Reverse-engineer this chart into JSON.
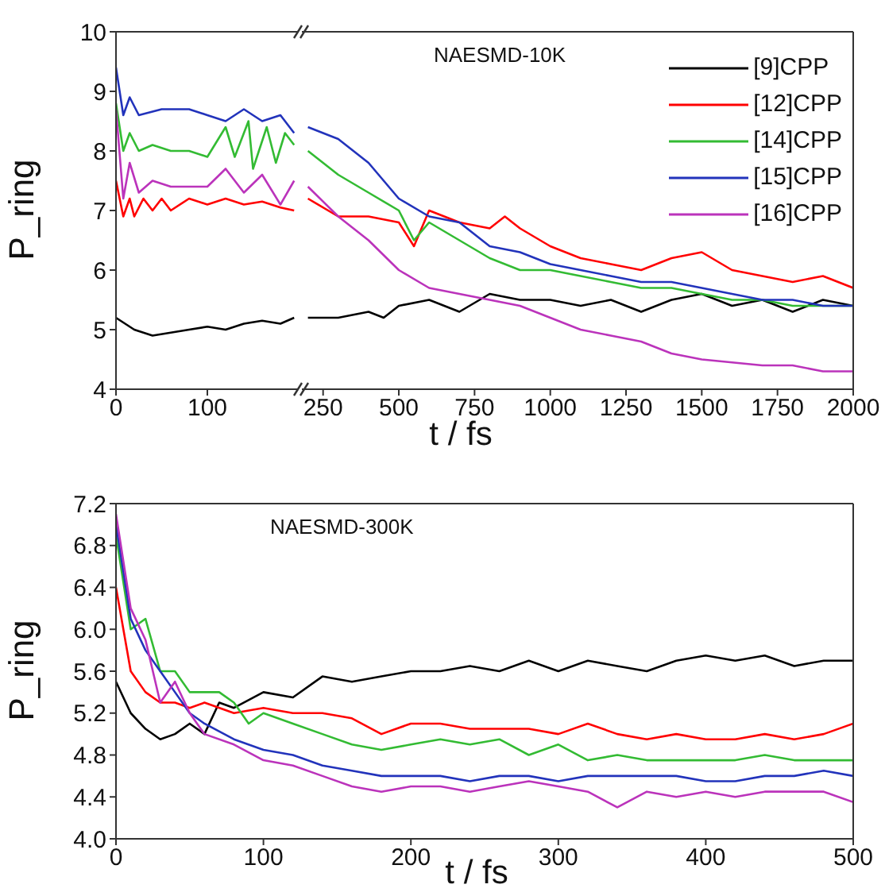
{
  "chart_data": [
    {
      "type": "line",
      "ylabel": "P_ring",
      "xlim": [
        0,
        200
      ],
      "xticks": [
        0,
        100
      ],
      "ylim": [
        4,
        10
      ],
      "yticks": [
        4,
        5,
        6,
        7,
        8,
        9,
        10
      ],
      "legend": false,
      "series": [
        {
          "color": "#000000",
          "x": [
            0,
            10,
            20,
            40,
            60,
            80,
            100,
            120,
            140,
            160,
            180,
            195
          ],
          "values": [
            5.2,
            5.1,
            5.0,
            4.9,
            4.95,
            5.0,
            5.05,
            5.0,
            5.1,
            5.15,
            5.1,
            5.2
          ]
        },
        {
          "color": "#ff0000",
          "x": [
            0,
            8,
            15,
            20,
            30,
            40,
            50,
            60,
            80,
            100,
            120,
            140,
            160,
            180,
            195
          ],
          "values": [
            7.5,
            6.9,
            7.2,
            6.9,
            7.2,
            7.0,
            7.2,
            7.0,
            7.2,
            7.1,
            7.2,
            7.1,
            7.15,
            7.05,
            7.0
          ]
        },
        {
          "color": "#33bb33",
          "x": [
            0,
            8,
            15,
            25,
            40,
            60,
            80,
            100,
            120,
            130,
            145,
            150,
            165,
            175,
            185,
            195
          ],
          "values": [
            8.8,
            8.0,
            8.3,
            8.0,
            8.1,
            8.0,
            8.0,
            7.9,
            8.4,
            7.9,
            8.5,
            7.7,
            8.4,
            7.8,
            8.3,
            8.1
          ]
        },
        {
          "color": "#2233bb",
          "x": [
            0,
            8,
            15,
            25,
            50,
            80,
            100,
            120,
            140,
            160,
            180,
            195
          ],
          "values": [
            9.4,
            8.6,
            8.9,
            8.6,
            8.7,
            8.7,
            8.6,
            8.5,
            8.7,
            8.5,
            8.6,
            8.3
          ]
        },
        {
          "color": "#bb33bb",
          "x": [
            0,
            8,
            15,
            25,
            40,
            60,
            80,
            100,
            120,
            140,
            160,
            180,
            195
          ],
          "values": [
            8.7,
            7.2,
            7.8,
            7.3,
            7.5,
            7.4,
            7.4,
            7.4,
            7.7,
            7.3,
            7.6,
            7.1,
            7.5
          ]
        }
      ]
    },
    {
      "type": "line",
      "title": "NAESMD-10K",
      "xlabel": "t / fs",
      "xlim": [
        180,
        2000
      ],
      "xticks": [
        250,
        500,
        750,
        1000,
        1250,
        1500,
        1750,
        2000
      ],
      "ylim": [
        4,
        10
      ],
      "yticks": [
        4,
        5,
        6,
        7,
        8,
        9,
        10
      ],
      "tick_labels": "x",
      "legend": "top right",
      "series": [
        {
          "name": "[9]CPP",
          "color": "#000000",
          "x": [
            200,
            300,
            400,
            450,
            500,
            600,
            700,
            800,
            900,
            1000,
            1100,
            1200,
            1300,
            1400,
            1500,
            1600,
            1700,
            1800,
            1900,
            2000
          ],
          "values": [
            5.2,
            5.2,
            5.3,
            5.2,
            5.4,
            5.5,
            5.3,
            5.6,
            5.5,
            5.5,
            5.4,
            5.5,
            5.3,
            5.5,
            5.6,
            5.4,
            5.5,
            5.3,
            5.5,
            5.4
          ]
        },
        {
          "name": "[12]CPP",
          "color": "#ff0000",
          "x": [
            200,
            300,
            400,
            500,
            550,
            600,
            700,
            800,
            850,
            900,
            1000,
            1100,
            1200,
            1300,
            1400,
            1500,
            1600,
            1700,
            1800,
            1900,
            2000
          ],
          "values": [
            7.2,
            6.9,
            6.9,
            6.8,
            6.4,
            7.0,
            6.8,
            6.7,
            6.9,
            6.7,
            6.4,
            6.2,
            6.1,
            6.0,
            6.2,
            6.3,
            6.0,
            5.9,
            5.8,
            5.9,
            5.7
          ]
        },
        {
          "name": "[14]CPP",
          "color": "#33bb33",
          "x": [
            200,
            300,
            400,
            500,
            550,
            600,
            700,
            800,
            900,
            1000,
            1100,
            1200,
            1300,
            1400,
            1500,
            1600,
            1700,
            1800,
            1900,
            2000
          ],
          "values": [
            8.0,
            7.6,
            7.3,
            7.0,
            6.5,
            6.8,
            6.5,
            6.2,
            6.0,
            6.0,
            5.9,
            5.8,
            5.7,
            5.7,
            5.6,
            5.5,
            5.5,
            5.4,
            5.4,
            5.4
          ]
        },
        {
          "name": "[15]CPP",
          "color": "#2233bb",
          "x": [
            200,
            300,
            400,
            500,
            600,
            700,
            800,
            900,
            1000,
            1100,
            1200,
            1300,
            1400,
            1500,
            1600,
            1700,
            1800,
            1900,
            2000
          ],
          "values": [
            8.4,
            8.2,
            7.8,
            7.2,
            6.9,
            6.8,
            6.4,
            6.3,
            6.1,
            6.0,
            5.9,
            5.8,
            5.8,
            5.7,
            5.6,
            5.5,
            5.5,
            5.4,
            5.4
          ]
        },
        {
          "name": "[16]CPP",
          "color": "#bb33bb",
          "x": [
            200,
            300,
            400,
            500,
            600,
            700,
            800,
            900,
            1000,
            1100,
            1200,
            1300,
            1400,
            1500,
            1600,
            1700,
            1800,
            1900,
            2000
          ],
          "values": [
            7.4,
            6.9,
            6.5,
            6.0,
            5.7,
            5.6,
            5.5,
            5.4,
            5.2,
            5.0,
            4.9,
            4.8,
            4.6,
            4.5,
            4.45,
            4.4,
            4.4,
            4.3,
            4.3
          ]
        }
      ]
    },
    {
      "type": "line",
      "title": "NAESMD-300K",
      "xlabel": "t / fs",
      "ylabel": "P_ring",
      "xlim": [
        0,
        500
      ],
      "xticks": [
        0,
        100,
        200,
        300,
        400,
        500
      ],
      "ylim": [
        4.0,
        7.2
      ],
      "yticks": [
        {
          "value": 4.0,
          "label": "4.0"
        },
        4.4,
        4.8,
        5.2,
        5.6,
        {
          "value": 6.0,
          "label": "6.0"
        },
        6.4,
        6.8,
        7.2
      ],
      "legend": false,
      "series": [
        {
          "color": "#000000",
          "x": [
            0,
            10,
            20,
            30,
            40,
            50,
            60,
            70,
            80,
            100,
            120,
            140,
            160,
            180,
            200,
            220,
            240,
            260,
            280,
            300,
            320,
            340,
            360,
            380,
            400,
            420,
            440,
            460,
            480,
            500
          ],
          "values": [
            5.5,
            5.2,
            5.05,
            4.95,
            5.0,
            5.1,
            5.0,
            5.3,
            5.25,
            5.4,
            5.35,
            5.55,
            5.5,
            5.55,
            5.6,
            5.6,
            5.65,
            5.6,
            5.7,
            5.6,
            5.7,
            5.65,
            5.6,
            5.7,
            5.75,
            5.7,
            5.75,
            5.65,
            5.7,
            5.7
          ]
        },
        {
          "color": "#ff0000",
          "x": [
            0,
            10,
            20,
            30,
            40,
            50,
            60,
            80,
            100,
            120,
            140,
            160,
            180,
            200,
            220,
            240,
            260,
            280,
            300,
            320,
            340,
            360,
            380,
            400,
            420,
            440,
            460,
            480,
            500
          ],
          "values": [
            6.4,
            5.6,
            5.4,
            5.3,
            5.3,
            5.25,
            5.3,
            5.2,
            5.25,
            5.2,
            5.2,
            5.15,
            5.0,
            5.1,
            5.1,
            5.05,
            5.05,
            5.05,
            5.0,
            5.1,
            5.0,
            4.95,
            5.0,
            4.95,
            4.95,
            5.0,
            4.95,
            5.0,
            5.1
          ]
        },
        {
          "color": "#33bb33",
          "x": [
            0,
            10,
            20,
            30,
            40,
            50,
            60,
            70,
            80,
            90,
            100,
            120,
            140,
            160,
            180,
            200,
            220,
            240,
            260,
            280,
            300,
            320,
            340,
            360,
            380,
            400,
            420,
            440,
            460,
            480,
            500
          ],
          "values": [
            6.9,
            6.0,
            6.1,
            5.6,
            5.6,
            5.4,
            5.4,
            5.4,
            5.3,
            5.1,
            5.2,
            5.1,
            5.0,
            4.9,
            4.85,
            4.9,
            4.95,
            4.9,
            4.95,
            4.8,
            4.9,
            4.75,
            4.8,
            4.75,
            4.75,
            4.75,
            4.75,
            4.8,
            4.75,
            4.75,
            4.75
          ]
        },
        {
          "color": "#2233bb",
          "x": [
            0,
            10,
            20,
            30,
            40,
            50,
            60,
            80,
            100,
            120,
            140,
            160,
            180,
            200,
            220,
            240,
            260,
            280,
            300,
            320,
            340,
            360,
            380,
            400,
            420,
            440,
            460,
            480,
            500
          ],
          "values": [
            7.0,
            6.1,
            5.8,
            5.6,
            5.4,
            5.2,
            5.1,
            4.95,
            4.85,
            4.8,
            4.7,
            4.65,
            4.6,
            4.6,
            4.6,
            4.55,
            4.6,
            4.6,
            4.55,
            4.6,
            4.6,
            4.6,
            4.6,
            4.55,
            4.55,
            4.6,
            4.6,
            4.65,
            4.6
          ]
        },
        {
          "color": "#bb33bb",
          "x": [
            0,
            10,
            20,
            30,
            40,
            50,
            60,
            80,
            100,
            120,
            140,
            160,
            180,
            200,
            220,
            240,
            260,
            280,
            300,
            320,
            340,
            360,
            380,
            400,
            420,
            440,
            460,
            480,
            500
          ],
          "values": [
            7.1,
            6.2,
            5.9,
            5.3,
            5.5,
            5.2,
            5.0,
            4.9,
            4.75,
            4.7,
            4.6,
            4.5,
            4.45,
            4.5,
            4.5,
            4.45,
            4.5,
            4.55,
            4.5,
            4.45,
            4.3,
            4.45,
            4.4,
            4.45,
            4.4,
            4.45,
            4.45,
            4.45,
            4.35
          ]
        }
      ]
    }
  ]
}
